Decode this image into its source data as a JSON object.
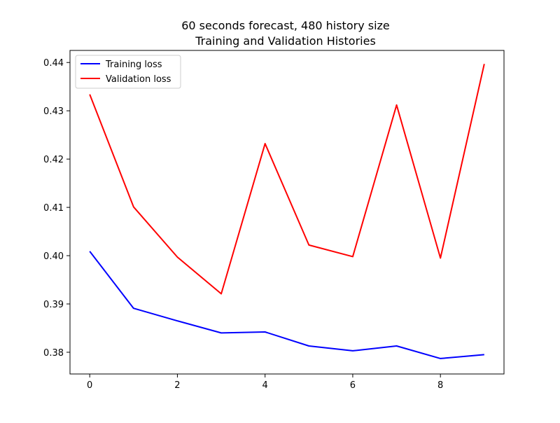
{
  "chart_data": {
    "type": "line",
    "title": "60 seconds forecast, 480 history size",
    "subtitle": "Training and Validation Histories",
    "xlabel": "",
    "ylabel": "",
    "xlim": [
      -0.45,
      9.45
    ],
    "ylim": [
      0.3755,
      0.4425
    ],
    "x_ticks": [
      0,
      2,
      4,
      6,
      8
    ],
    "y_ticks": [
      0.38,
      0.39,
      0.4,
      0.41,
      0.42,
      0.43,
      0.44
    ],
    "y_tick_labels": [
      "0.38",
      "0.39",
      "0.40",
      "0.41",
      "0.42",
      "0.43",
      "0.44"
    ],
    "x": [
      0,
      1,
      2,
      3,
      4,
      5,
      6,
      7,
      8,
      9
    ],
    "series": [
      {
        "name": "Training loss",
        "color": "#0000ff",
        "values": [
          0.4009,
          0.3891,
          0.3865,
          0.384,
          0.3842,
          0.3813,
          0.3803,
          0.3813,
          0.3787,
          0.3795
        ]
      },
      {
        "name": "Validation loss",
        "color": "#ff0000",
        "values": [
          0.4334,
          0.4101,
          0.3997,
          0.3921,
          0.4232,
          0.4022,
          0.3998,
          0.4312,
          0.3995,
          0.4397
        ]
      }
    ],
    "grid": false,
    "legend_position": "top-left"
  }
}
